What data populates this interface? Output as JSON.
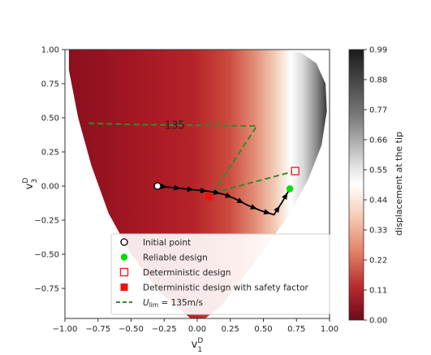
{
  "chart_data": {
    "type": "heatmap",
    "xlabel": "v",
    "xlabel_sup": "D",
    "xlabel_sub": "1",
    "ylabel": "v",
    "ylabel_sup": "D",
    "ylabel_sub": "3",
    "xlim": [
      -1.0,
      1.0
    ],
    "ylim": [
      -0.97,
      1.0
    ],
    "xticks": [
      -1.0,
      -0.75,
      -0.5,
      -0.25,
      0.0,
      0.25,
      0.5,
      0.75,
      1.0
    ],
    "xtick_labels": [
      "−1.00",
      "−0.75",
      "−0.50",
      "−0.25",
      "0.00",
      "0.25",
      "0.50",
      "0.75",
      "1.00"
    ],
    "yticks": [
      1.0,
      0.75,
      0.5,
      0.25,
      0.0,
      -0.25,
      -0.5,
      -0.75
    ],
    "ytick_labels": [
      "1.00",
      "0.75",
      "0.50",
      "0.25",
      "0.00",
      "−0.25",
      "−0.50",
      "−0.75"
    ],
    "colorbar": {
      "label": "displacement at the tip",
      "range": [
        0.0,
        0.99
      ],
      "ticks": [
        0.99,
        0.88,
        0.77,
        0.66,
        0.55,
        0.44,
        0.33,
        0.22,
        0.11,
        0.0
      ],
      "tick_labels": [
        "0.99",
        "0.88",
        "0.77",
        "0.66",
        "0.55",
        "0.44",
        "0.33",
        "0.22",
        "0.11",
        "0.00"
      ],
      "colormap": "RdGy"
    },
    "contour": {
      "label": "135",
      "color": "#2e8b2e",
      "x": [
        -0.82,
        -0.45,
        0.45,
        0.12
      ],
      "y": [
        0.46,
        0.45,
        0.44,
        -0.05
      ]
    },
    "series": [
      {
        "name": "Initial point",
        "marker": "circle-open",
        "color": "#000000",
        "points": [
          [
            -0.3,
            0.0
          ]
        ]
      },
      {
        "name": "Reliable design",
        "marker": "circle-filled",
        "color": "#00dd00",
        "points": [
          [
            0.7,
            -0.02
          ]
        ]
      },
      {
        "name": "Deterministic design",
        "marker": "square-open",
        "color": "#ee2222",
        "points": [
          [
            0.74,
            0.11
          ]
        ]
      },
      {
        "name": "Deterministic design with safety factor",
        "marker": "square-filled",
        "color": "#ee1111",
        "points": [
          [
            0.09,
            -0.08
          ]
        ]
      },
      {
        "name": "U_lim = 135m/s",
        "name_display": {
          "prefix": "U",
          "sub": "lim",
          "suffix": " = 135m/s"
        },
        "marker": "dashed-line",
        "color": "#2e8b2e",
        "x": [
          0.12,
          0.74
        ],
        "y": [
          -0.05,
          0.11
        ]
      }
    ],
    "optimization_path": {
      "color": "#000000",
      "x": [
        -0.3,
        -0.2,
        -0.1,
        0.0,
        0.1,
        0.2,
        0.28,
        0.38,
        0.48,
        0.58,
        0.64,
        0.7
      ],
      "y": [
        0.0,
        -0.01,
        -0.02,
        -0.03,
        -0.04,
        -0.06,
        -0.09,
        -0.14,
        -0.18,
        -0.21,
        -0.12,
        -0.02
      ]
    },
    "legend_position": "lower-center"
  }
}
